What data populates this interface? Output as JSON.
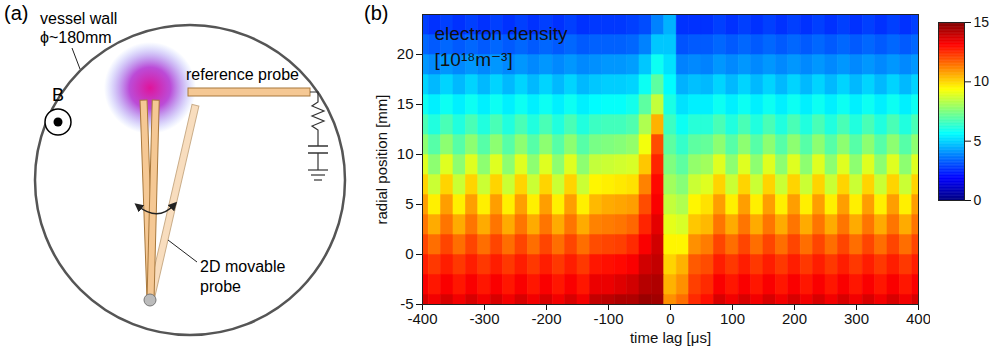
{
  "diagram": {
    "panel_label": "(a)",
    "vessel_wall": "vessel wall",
    "diameter": "ϕ~180mm",
    "field": "B",
    "reference_probe": "reference probe",
    "movable_probe": [
      "2D movable",
      "probe"
    ]
  },
  "chart_data": {
    "type": "heatmap",
    "panel_label": "(b)",
    "title": "electron density",
    "units": "[10¹⁸m⁻³]",
    "xlabel": "time lag [μs]",
    "ylabel": "radial position [mm]",
    "xlim": [
      -400,
      400
    ],
    "xticks": [
      -400,
      -300,
      -200,
      -100,
      0,
      100,
      200,
      300,
      400
    ],
    "ylim": [
      -5,
      24
    ],
    "yticks": [
      -5,
      0,
      5,
      10,
      15,
      20
    ],
    "colorbar": {
      "lim": [
        0,
        15
      ],
      "ticks": [
        0,
        5,
        10,
        15
      ]
    },
    "x": [
      -400,
      -380,
      -360,
      -340,
      -320,
      -300,
      -280,
      -260,
      -240,
      -220,
      -200,
      -180,
      -160,
      -140,
      -120,
      -100,
      -80,
      -60,
      -40,
      -20,
      0,
      20,
      40,
      60,
      80,
      100,
      120,
      140,
      160,
      180,
      200,
      220,
      240,
      260,
      280,
      300,
      320,
      340,
      360,
      380,
      400
    ],
    "y": [
      -5,
      -3,
      -1,
      1,
      3,
      5,
      7,
      9,
      11,
      13,
      15,
      17,
      19,
      21,
      23
    ],
    "values": [
      [
        13.7,
        13.3,
        13.7,
        13.3,
        13.7,
        13.3,
        13.7,
        13.3,
        13.7,
        13.3,
        13.7,
        13.3,
        13.7,
        13.3,
        14.0,
        14.1,
        14.3,
        14.3,
        14.6,
        14.5,
        11,
        11.5,
        12.5,
        12.9,
        13.7,
        13.3,
        13.7,
        13.3,
        13.7,
        13.3,
        13.7,
        13.3,
        13.7,
        13.3,
        13.7,
        13.3,
        13.7,
        13.3,
        13.7,
        13.3,
        13.7
      ],
      [
        13.2,
        12.8,
        13.2,
        12.8,
        13.2,
        12.8,
        13.2,
        12.8,
        13.2,
        12.8,
        13.2,
        12.8,
        13.2,
        12.8,
        13.4,
        13.4,
        13.6,
        13.8,
        14.2,
        14.3,
        10.5,
        11,
        12.2,
        12.5,
        13.2,
        12.8,
        13.2,
        12.8,
        13.2,
        12.8,
        13.2,
        12.8,
        13.2,
        12.8,
        13.2,
        12.8,
        13.2,
        12.8,
        13.2,
        12.8,
        13.2
      ],
      [
        12.7,
        12.3,
        12.7,
        12.3,
        12.7,
        12.3,
        12.7,
        12.3,
        12.7,
        12.3,
        12.7,
        12.3,
        12.7,
        12.3,
        12.8,
        12.9,
        13,
        13.2,
        13.8,
        14,
        10,
        10.5,
        11.8,
        12,
        12.7,
        12.3,
        12.7,
        12.3,
        12.7,
        12.3,
        12.7,
        12.3,
        12.7,
        12.3,
        12.7,
        12.3,
        12.7,
        12.3,
        12.7,
        12.3,
        12.7
      ],
      [
        12.1,
        11.5,
        12.1,
        11.5,
        12.1,
        11.5,
        12.1,
        11.5,
        12.1,
        11.5,
        12.1,
        11.5,
        12.1,
        11.5,
        12,
        12.1,
        12.2,
        12.5,
        13.2,
        13.8,
        9.5,
        9.5,
        11,
        11.3,
        12.1,
        11.5,
        12.1,
        11.5,
        12.1,
        11.5,
        12.1,
        11.5,
        12.1,
        11.5,
        12.1,
        11.5,
        12.1,
        11.5,
        12.1,
        11.5,
        12.1
      ],
      [
        11.4,
        10.6,
        11.4,
        10.6,
        11.4,
        10.6,
        11.4,
        10.6,
        11.4,
        10.6,
        11.4,
        10.6,
        11.4,
        10.6,
        11.2,
        11.3,
        11.4,
        11.6,
        12.6,
        13.5,
        9,
        8.8,
        10.2,
        10.4,
        11.4,
        10.6,
        11.4,
        10.6,
        11.4,
        10.6,
        11.4,
        10.6,
        11.4,
        10.6,
        11.4,
        10.6,
        11.4,
        10.6,
        11.4,
        10.6,
        11.4
      ],
      [
        10.8,
        9.6,
        10.8,
        9.6,
        10.8,
        9.6,
        10.8,
        9.6,
        10.8,
        9.6,
        10.8,
        9.6,
        10.8,
        9.6,
        10.4,
        10.6,
        10.7,
        10.8,
        12,
        13.2,
        8.5,
        8.2,
        9.5,
        9.8,
        10.8,
        9.6,
        10.8,
        9.6,
        10.8,
        9.6,
        10.8,
        9.6,
        10.8,
        9.6,
        10.8,
        9.6,
        10.8,
        9.6,
        10.8,
        9.6,
        10.8
      ],
      [
        10,
        8.6,
        10,
        8.6,
        10,
        8.6,
        10,
        8.6,
        10,
        8.6,
        10,
        8.6,
        10,
        8.6,
        9.5,
        9.6,
        9.7,
        9.8,
        11.2,
        13,
        8,
        7.6,
        8.6,
        8.9,
        10,
        8.6,
        10,
        8.6,
        10,
        8.6,
        10,
        8.6,
        10,
        8.6,
        10,
        8.6,
        10,
        8.6,
        10,
        8.6,
        10
      ],
      [
        8.9,
        7.7,
        8.9,
        7.7,
        8.9,
        7.7,
        8.9,
        7.7,
        8.9,
        7.7,
        8.9,
        7.7,
        8.9,
        7.7,
        8.5,
        8.6,
        8.7,
        8.8,
        10.2,
        12.6,
        7.5,
        7,
        7.8,
        8,
        8.9,
        7.7,
        8.9,
        7.7,
        8.9,
        7.7,
        8.9,
        7.7,
        8.9,
        7.7,
        8.9,
        7.7,
        8.9,
        7.7,
        8.9,
        7.7,
        8.9
      ],
      [
        7.7,
        6.9,
        7.7,
        6.9,
        7.7,
        6.9,
        7.7,
        6.9,
        7.7,
        6.9,
        7.7,
        6.9,
        7.7,
        6.9,
        7.4,
        7.5,
        7.6,
        7.8,
        9.2,
        12,
        7,
        6.4,
        7,
        7.1,
        7.7,
        6.9,
        7.7,
        6.9,
        7.7,
        6.9,
        7.7,
        6.9,
        7.7,
        6.9,
        7.7,
        6.9,
        7.7,
        6.9,
        7.7,
        6.9,
        7.7
      ],
      [
        6.7,
        6.1,
        6.7,
        6.1,
        6.7,
        6.1,
        6.7,
        6.1,
        6.7,
        6.1,
        6.7,
        6.1,
        6.7,
        6.1,
        6.5,
        6.6,
        6.6,
        6.8,
        8.2,
        10.5,
        6.5,
        5.8,
        6.2,
        6.2,
        6.7,
        6.1,
        6.7,
        6.1,
        6.7,
        6.1,
        6.7,
        6.1,
        6.7,
        6.1,
        6.7,
        6.1,
        6.7,
        6.1,
        6.7,
        6.1,
        6.7
      ],
      [
        5.8,
        5.4,
        5.8,
        5.4,
        5.8,
        5.4,
        5.8,
        5.4,
        5.8,
        5.4,
        5.8,
        5.4,
        5.8,
        5.4,
        5.6,
        5.7,
        5.7,
        5.9,
        7,
        8.5,
        6,
        5.2,
        5.4,
        5.4,
        5.8,
        5.4,
        5.8,
        5.4,
        5.8,
        5.4,
        5.8,
        5.4,
        5.8,
        5.4,
        5.8,
        5.4,
        5.8,
        5.4,
        5.8,
        5.4,
        5.8
      ],
      [
        5,
        4.6,
        5,
        4.6,
        5,
        4.6,
        5,
        4.6,
        5,
        4.6,
        5,
        4.6,
        5,
        4.6,
        4.8,
        4.9,
        4.9,
        5,
        5.8,
        7,
        5.6,
        4.5,
        4.7,
        4.6,
        5,
        4.6,
        5,
        4.6,
        5,
        4.6,
        5,
        4.6,
        5,
        4.6,
        5,
        4.6,
        5,
        4.6,
        5,
        4.6,
        5
      ],
      [
        4.1,
        3.9,
        4.1,
        3.9,
        4.1,
        3.9,
        4.1,
        3.9,
        4.1,
        3.9,
        4.1,
        3.9,
        4.1,
        3.9,
        4,
        4.1,
        4.1,
        4.2,
        4.8,
        5.8,
        5.2,
        3.8,
        3.9,
        3.8,
        4.1,
        3.9,
        4.1,
        3.9,
        4.1,
        3.9,
        4.1,
        3.9,
        4.1,
        3.9,
        4.1,
        3.9,
        4.1,
        3.9,
        4.1,
        3.9,
        4.1
      ],
      [
        3.4,
        3.2,
        3.4,
        3.2,
        3.4,
        3.2,
        3.4,
        3.2,
        3.4,
        3.2,
        3.4,
        3.2,
        3.4,
        3.2,
        3.3,
        3.3,
        3.3,
        3.4,
        3.8,
        4.8,
        4.8,
        3.1,
        3.2,
        3.2,
        3.4,
        3.2,
        3.4,
        3.2,
        3.4,
        3.2,
        3.4,
        3.2,
        3.4,
        3.2,
        3.4,
        3.2,
        3.4,
        3.2,
        3.4,
        3.2,
        3.4
      ],
      [
        2.8,
        2.6,
        2.8,
        2.6,
        2.8,
        2.6,
        2.8,
        2.6,
        2.8,
        2.6,
        2.8,
        2.6,
        2.8,
        2.6,
        2.7,
        2.7,
        2.7,
        2.8,
        3,
        3.8,
        4.5,
        2.6,
        2.6,
        2.6,
        2.8,
        2.6,
        2.8,
        2.6,
        2.8,
        2.6,
        2.8,
        2.6,
        2.8,
        2.6,
        2.8,
        2.6,
        2.8,
        2.6,
        2.8,
        2.6,
        2.8
      ]
    ]
  }
}
